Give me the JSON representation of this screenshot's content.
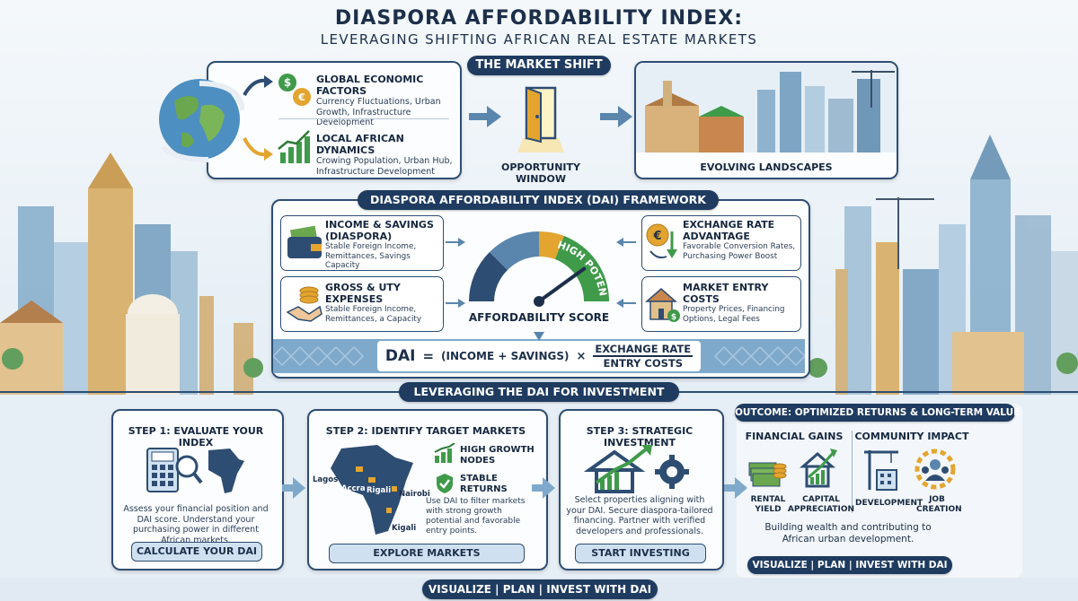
{
  "title": {
    "main": "DIASPORA AFFORDABILITY INDEX:",
    "subtitle": "LEVERAGING SHIFTING AFRICAN REAL ESTATE MARKETS"
  },
  "market_shift": {
    "label": "THE MARKET SHIFT",
    "global": {
      "heading": "GLOBAL ECONOMIC FACTORS",
      "text": "Currency Fluctuations, Urban Growth, Infrastructure Development"
    },
    "local": {
      "heading": "LOCAL AFRICAN DYNAMICS",
      "text": "Crowing Population, Urban Hub, Infrastructure Development"
    },
    "opportunity_label": "OPPORTUNITY WINDOW",
    "landscapes_label": "EVOLVING LANDSCAPES"
  },
  "framework": {
    "label": "DIASPORA AFFORDABILITY INDEX (DAI) FRAMEWORK",
    "income": {
      "heading": "INCOME & SAVINGS (DIASPORA)",
      "text": "Stable Foreign Income, Remittances, Savings Capacity"
    },
    "gross": {
      "heading": "GROSS & UTY EXPENSES",
      "text": "Stable Foreign Income, Remittances, a Capacity"
    },
    "exchange": {
      "heading": "EXCHANGE RATE ADVANTAGE",
      "text": "Favorable Conversion Rates, Purchasing Power Boost"
    },
    "entry": {
      "heading": "MARKET ENTRY COSTS",
      "text": "Property Prices, Financing Options, Legal Fees"
    },
    "gauge": {
      "label": "AFFORDABILITY SCORE",
      "high_label": "HIGH POTENTIAL",
      "level": 0.8
    },
    "formula": {
      "lhs": "DAI",
      "eq": "=",
      "term": "(INCOME + SAVINGS)",
      "times": "×",
      "numerator": "EXCHANGE RATE",
      "denominator": "ENTRY COSTS"
    }
  },
  "investment": {
    "label": "LEVERAGING THE DAI FOR INVESTMENT",
    "step1": {
      "heading": "STEP 1: EVALUATE YOUR INDEX",
      "text": "Assess your financial position and DAI score. Understand your purchasing power in different African markets.",
      "button": "CALCULATE YOUR DAI"
    },
    "step2": {
      "heading": "STEP 2: IDENTIFY TARGET MARKETS",
      "cities": [
        "Lagos",
        "Accra",
        "Rigali",
        "Nairobi",
        "Kigali"
      ],
      "high_growth": "HIGH GROWTH NODES",
      "stable": "STABLE RETURNS",
      "text": "Use DAI to filter markets with strong growth potential and favorable entry points.",
      "button": "EXPLORE MARKETS"
    },
    "step3": {
      "heading": "STEP 3: STRATEGIC INVESTMENT",
      "text": "Select properties aligning with your DAI. Secure diaspora-tailored financing. Partner with verified developers and professionals.",
      "button": "START INVESTING"
    },
    "outcome": {
      "label": "OUTCOME: OPTIMIZED RETURNS & LONG-TERM VALUE",
      "financial": "FINANCIAL GAINS",
      "community": "COMMUNITY IMPACT",
      "rental": "RENTAL YIELD",
      "capital": "CAPITAL APPRECIATION",
      "development": "DEVELOPMENT",
      "job": "JOB CREATION",
      "text": "Building wealth and contributing to African urban development.",
      "tagline": "VISUALIZE | PLAN | INVEST WITH DAI"
    }
  },
  "footer": "VISUALIZE | PLAN | INVEST WITH DAI",
  "colors": {
    "navy": "#1f3b60",
    "green": "#3f9a4a",
    "gold": "#e3a52f",
    "sky": "#dde9f3"
  }
}
